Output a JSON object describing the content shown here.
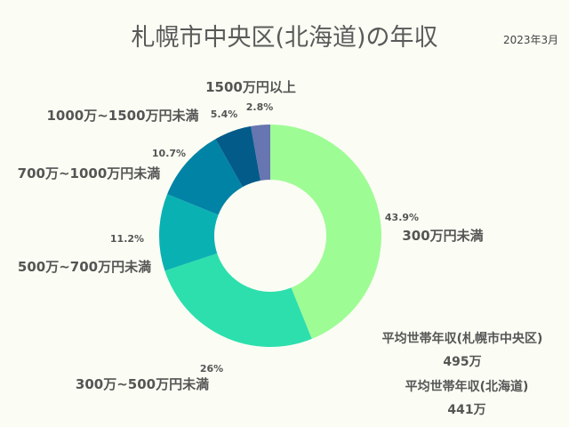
{
  "header": {
    "title": "札幌市中央区(北海道)の年収",
    "date": "2023年3月"
  },
  "chart_data": {
    "type": "pie",
    "donut": true,
    "title": "札幌市中央区(北海道)の年収",
    "categories": [
      "300万円未満",
      "300万~500万円未満",
      "500万~700万円未満",
      "700万~1000万円未満",
      "1000万~1500万円未満",
      "1500万円以上"
    ],
    "values": [
      43.9,
      26,
      11.2,
      10.7,
      5.4,
      2.8
    ],
    "value_labels": [
      "43.9%",
      "26%",
      "11.2%",
      "10.7%",
      "5.4%",
      "2.8%"
    ],
    "colors": [
      "#9efc95",
      "#2ddfad",
      "#0ab1b3",
      "#0183a6",
      "#035b8a",
      "#6775b0"
    ]
  },
  "notes": [
    {
      "label": "平均世帯年収(札幌市中央区)",
      "value": "495万"
    },
    {
      "label": "平均世帯年収(北海道)",
      "value": "441万"
    }
  ]
}
